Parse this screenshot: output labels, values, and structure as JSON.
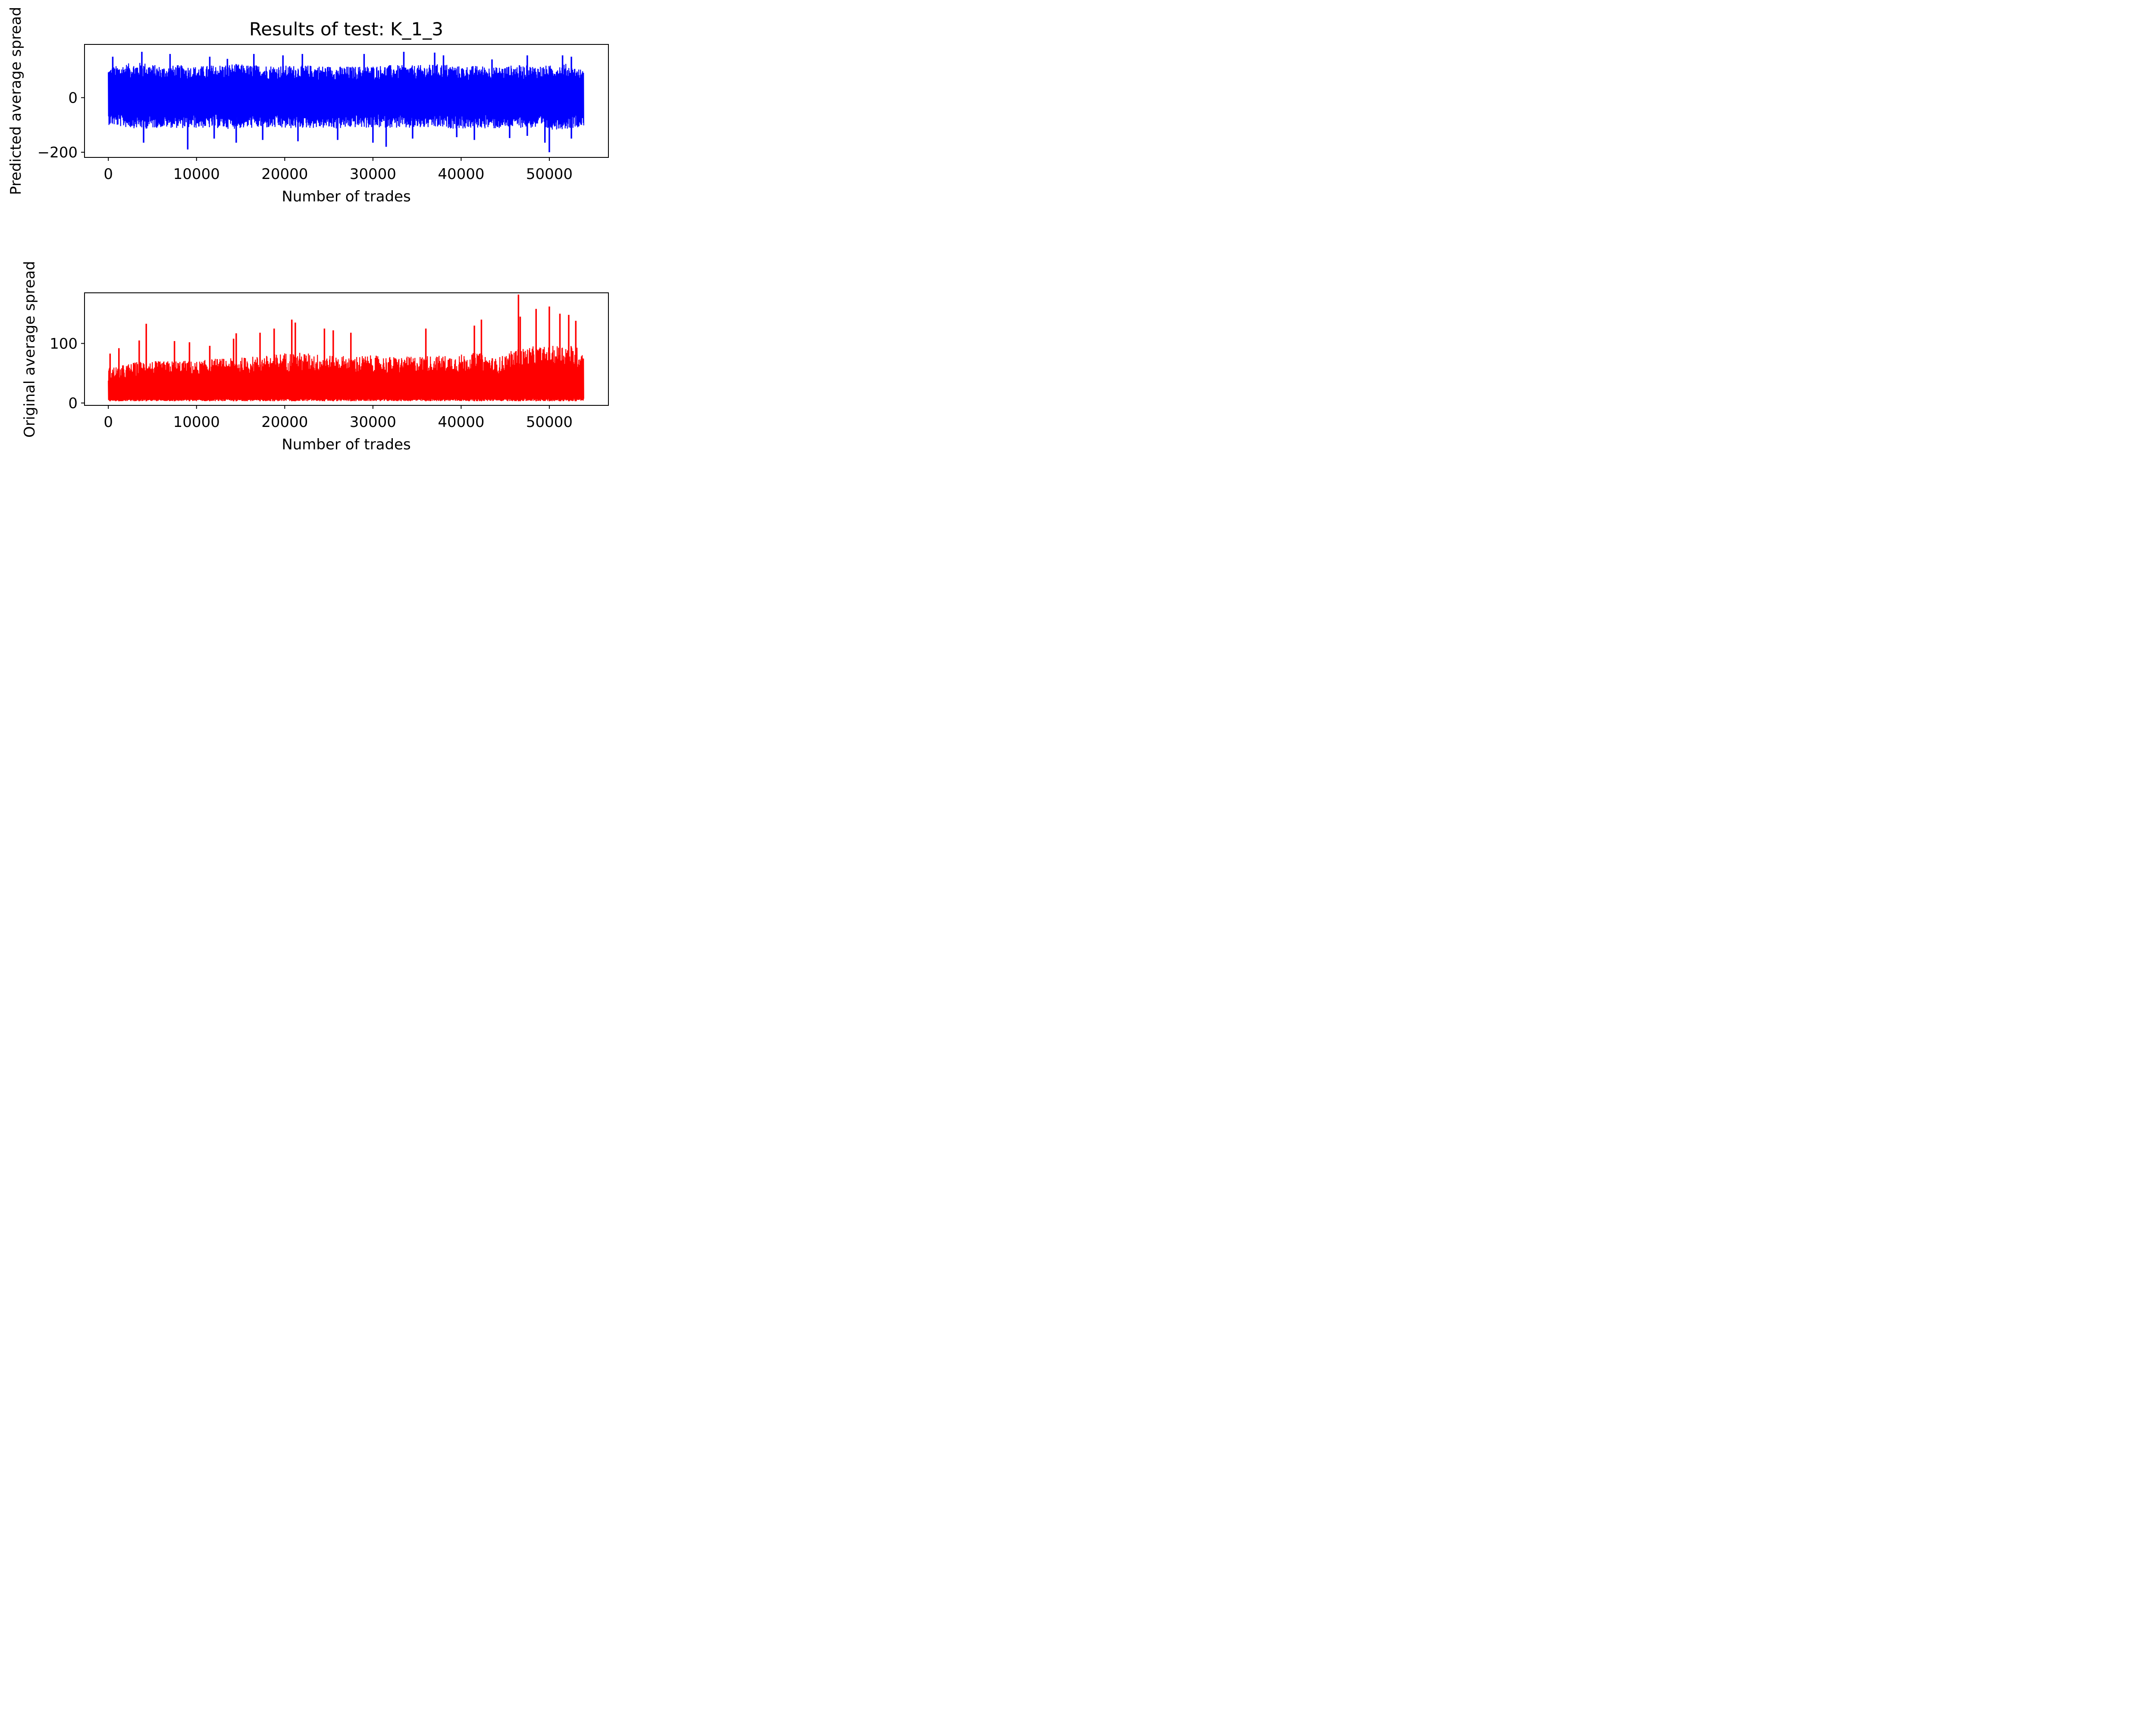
{
  "chart_data": [
    {
      "type": "line",
      "title": "Results of test: K_1_3",
      "xlabel": "Number of trades",
      "ylabel": "Predicted average spread",
      "xlim": [
        -2700,
        56700
      ],
      "ylim": [
        -219,
        195
      ],
      "xticks": [
        0,
        10000,
        20000,
        30000,
        40000,
        50000
      ],
      "xtick_labels": [
        "0",
        "10000",
        "20000",
        "30000",
        "40000",
        "50000"
      ],
      "yticks": [
        0,
        -200
      ],
      "ytick_labels": [
        "0",
        "−200"
      ],
      "grid": false,
      "color": "#0000ff",
      "series": [
        {
          "x_start": 0,
          "x_end": 53900,
          "envelope_upper": [
            [
              0,
              110
            ],
            [
              2000,
              125
            ],
            [
              4000,
              130
            ],
            [
              6000,
              115
            ],
            [
              8000,
              120
            ],
            [
              10000,
              115
            ],
            [
              12000,
              120
            ],
            [
              14000,
              125
            ],
            [
              16000,
              120
            ],
            [
              18000,
              120
            ],
            [
              20000,
              118
            ],
            [
              22000,
              120
            ],
            [
              24000,
              118
            ],
            [
              26000,
              115
            ],
            [
              28000,
              115
            ],
            [
              30000,
              118
            ],
            [
              32000,
              120
            ],
            [
              34000,
              118
            ],
            [
              36000,
              120
            ],
            [
              38000,
              125
            ],
            [
              40000,
              115
            ],
            [
              42000,
              118
            ],
            [
              44000,
              112
            ],
            [
              46000,
              120
            ],
            [
              48000,
              118
            ],
            [
              50000,
              118
            ],
            [
              52000,
              125
            ],
            [
              53900,
              100
            ]
          ],
          "envelope_lower": [
            [
              0,
              -100
            ],
            [
              2000,
              -110
            ],
            [
              4000,
              -115
            ],
            [
              6000,
              -110
            ],
            [
              8000,
              -112
            ],
            [
              10000,
              -112
            ],
            [
              12000,
              -112
            ],
            [
              14000,
              -115
            ],
            [
              16000,
              -112
            ],
            [
              18000,
              -112
            ],
            [
              20000,
              -115
            ],
            [
              22000,
              -112
            ],
            [
              24000,
              -112
            ],
            [
              26000,
              -115
            ],
            [
              28000,
              -110
            ],
            [
              30000,
              -112
            ],
            [
              32000,
              -110
            ],
            [
              34000,
              -115
            ],
            [
              36000,
              -112
            ],
            [
              38000,
              -112
            ],
            [
              40000,
              -115
            ],
            [
              42000,
              -112
            ],
            [
              44000,
              -115
            ],
            [
              46000,
              -110
            ],
            [
              48000,
              -112
            ],
            [
              50000,
              -118
            ],
            [
              52000,
              -115
            ],
            [
              53900,
              -105
            ]
          ],
          "peaks": [
            [
              500,
              150
            ],
            [
              3800,
              168
            ],
            [
              7000,
              160
            ],
            [
              11500,
              150
            ],
            [
              13500,
              142
            ],
            [
              16500,
              160
            ],
            [
              19800,
              155
            ],
            [
              22000,
              160
            ],
            [
              29000,
              160
            ],
            [
              33500,
              168
            ],
            [
              37000,
              165
            ],
            [
              38000,
              155
            ],
            [
              43500,
              140
            ],
            [
              47500,
              155
            ],
            [
              51500,
              155
            ],
            [
              52500,
              150
            ]
          ],
          "troughs": [
            [
              4000,
              -165
            ],
            [
              9000,
              -190
            ],
            [
              12000,
              -150
            ],
            [
              14500,
              -165
            ],
            [
              17500,
              -155
            ],
            [
              21500,
              -160
            ],
            [
              26000,
              -155
            ],
            [
              30000,
              -165
            ],
            [
              31500,
              -180
            ],
            [
              34500,
              -150
            ],
            [
              39500,
              -145
            ],
            [
              41500,
              -155
            ],
            [
              45500,
              -148
            ],
            [
              47500,
              -140
            ],
            [
              49500,
              -165
            ],
            [
              50000,
              -200
            ],
            [
              52500,
              -150
            ]
          ]
        }
      ]
    },
    {
      "type": "line",
      "title": "",
      "xlabel": "Number of trades",
      "ylabel": "Original average spread",
      "xlim": [
        -2700,
        56700
      ],
      "ylim": [
        -4,
        185
      ],
      "xticks": [
        0,
        10000,
        20000,
        30000,
        40000,
        50000
      ],
      "xtick_labels": [
        "0",
        "10000",
        "20000",
        "30000",
        "40000",
        "50000"
      ],
      "yticks": [
        0,
        100
      ],
      "ytick_labels": [
        "0",
        "100"
      ],
      "grid": false,
      "color": "#ff0000",
      "series": [
        {
          "x_start": 0,
          "x_end": 53900,
          "min_value": 3,
          "envelope_upper": [
            [
              0,
              60
            ],
            [
              2000,
              65
            ],
            [
              4000,
              72
            ],
            [
              6000,
              70
            ],
            [
              8000,
              72
            ],
            [
              10000,
              70
            ],
            [
              12000,
              75
            ],
            [
              14000,
              75
            ],
            [
              16000,
              78
            ],
            [
              18000,
              80
            ],
            [
              20000,
              85
            ],
            [
              22000,
              85
            ],
            [
              24000,
              82
            ],
            [
              26000,
              80
            ],
            [
              28000,
              80
            ],
            [
              30000,
              80
            ],
            [
              32000,
              78
            ],
            [
              34000,
              78
            ],
            [
              36000,
              80
            ],
            [
              38000,
              80
            ],
            [
              40000,
              82
            ],
            [
              42000,
              85
            ],
            [
              44000,
              75
            ],
            [
              46000,
              90
            ],
            [
              48000,
              95
            ],
            [
              50000,
              95
            ],
            [
              52000,
              100
            ],
            [
              53900,
              90
            ]
          ],
          "peaks": [
            [
              200,
              83
            ],
            [
              1200,
              92
            ],
            [
              3500,
              105
            ],
            [
              4300,
              133
            ],
            [
              7500,
              104
            ],
            [
              9200,
              102
            ],
            [
              11500,
              96
            ],
            [
              14200,
              108
            ],
            [
              14500,
              117
            ],
            [
              17200,
              118
            ],
            [
              18800,
              125
            ],
            [
              20800,
              140
            ],
            [
              21200,
              135
            ],
            [
              24500,
              125
            ],
            [
              25500,
              122
            ],
            [
              27500,
              118
            ],
            [
              36000,
              125
            ],
            [
              41500,
              130
            ],
            [
              42300,
              140
            ],
            [
              46500,
              182
            ],
            [
              46700,
              145
            ],
            [
              48500,
              158
            ],
            [
              50000,
              162
            ],
            [
              51200,
              150
            ],
            [
              52200,
              148
            ],
            [
              53000,
              138
            ]
          ]
        }
      ]
    }
  ]
}
